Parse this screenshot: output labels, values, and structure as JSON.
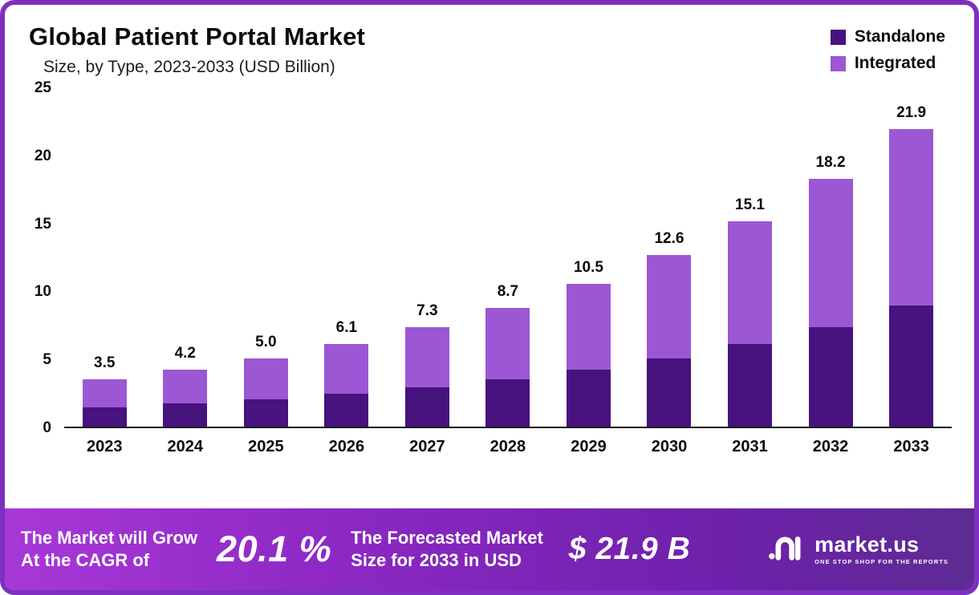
{
  "frame": {
    "border_color": "#7e2fc0",
    "background": "#ffffff"
  },
  "header": {
    "title": "Global Patient Portal Market",
    "subtitle": "Size, by Type, 2023-2033 (USD Billion)"
  },
  "legend": [
    {
      "label": "Standalone",
      "color": "#47137e"
    },
    {
      "label": "Integrated",
      "color": "#9c57d4"
    }
  ],
  "chart_data": {
    "type": "bar",
    "stacked": true,
    "title": "Global Patient Portal Market Size, by Type, 2023-2033 (USD Billion)",
    "categories": [
      "2023",
      "2024",
      "2025",
      "2026",
      "2027",
      "2028",
      "2029",
      "2030",
      "2031",
      "2032",
      "2033"
    ],
    "series": [
      {
        "name": "Standalone",
        "color": "#47137e",
        "values": [
          1.4,
          1.7,
          2.0,
          2.4,
          2.9,
          3.5,
          4.2,
          5.0,
          6.1,
          7.3,
          8.9
        ]
      },
      {
        "name": "Integrated",
        "color": "#9c57d4",
        "values": [
          2.1,
          2.5,
          3.0,
          3.7,
          4.4,
          5.2,
          6.3,
          7.6,
          9.0,
          10.9,
          13.0
        ]
      }
    ],
    "totals": [
      3.5,
      4.2,
      5.0,
      6.1,
      7.3,
      8.7,
      10.5,
      12.6,
      15.1,
      18.2,
      21.9
    ],
    "total_labels": [
      "3.5",
      "4.2",
      "5.0",
      "6.1",
      "7.3",
      "8.7",
      "10.5",
      "12.6",
      "15.1",
      "18.2",
      "21.9"
    ],
    "xlabel": "",
    "ylabel": "",
    "ylim": [
      0,
      25
    ],
    "yticks": [
      0,
      5,
      10,
      15,
      20,
      25
    ],
    "ytick_labels": [
      "0",
      "5",
      "10",
      "15",
      "20",
      "25"
    ],
    "grid": false,
    "legend_position": "top-right"
  },
  "footer": {
    "cagr_line1": "The Market will Grow",
    "cagr_line2": "At the CAGR of",
    "cagr_value": "20.1 %",
    "forecast_line1": "The Forecasted Market",
    "forecast_line2": "Size for 2033 in USD",
    "forecast_value": "$ 21.9 B",
    "brand": {
      "name": "market.us",
      "tagline": "ONE STOP SHOP FOR THE REPORTS"
    }
  }
}
